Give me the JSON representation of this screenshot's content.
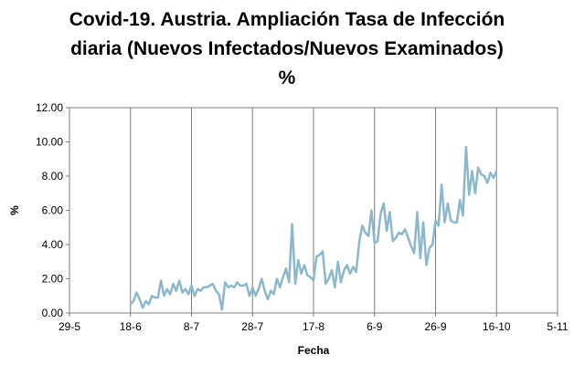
{
  "chart_data": {
    "type": "line",
    "title_lines": [
      "Covid-19. Austria. Ampliación Tasa de Infección",
      "diaria (Nuevos Infectados/Nuevos Examinados)",
      "%"
    ],
    "xlabel": "Fecha",
    "ylabel": "%",
    "x_tick_labels": [
      "29-5",
      "18-6",
      "8-7",
      "28-7",
      "17-8",
      "6-9",
      "26-9",
      "16-10",
      "5-11"
    ],
    "y_tick_labels": [
      "0.00",
      "2.00",
      "4.00",
      "6.00",
      "8.00",
      "10.00",
      "12.00"
    ],
    "ylim": [
      0,
      12
    ],
    "x_range_days": [
      0,
      160
    ],
    "grid": "vertical",
    "legend": "none",
    "line_color": "#8db8cc",
    "series": [
      {
        "x": [
          20,
          21,
          22,
          23,
          24,
          25,
          26,
          27,
          28,
          29,
          30,
          31,
          32,
          33,
          34,
          35,
          36,
          37,
          38,
          39,
          40,
          41,
          42,
          43,
          44,
          45,
          46,
          47,
          48,
          49,
          50,
          51,
          52,
          53,
          54,
          55,
          56,
          57,
          58,
          59,
          60,
          61,
          62,
          63,
          64,
          65,
          66,
          67,
          68,
          69,
          70,
          71,
          72,
          73,
          74,
          75,
          76,
          77,
          78,
          79,
          80,
          81,
          82,
          83,
          84,
          85,
          86,
          87,
          88,
          89,
          90,
          91,
          92,
          93,
          94,
          95,
          96,
          97,
          98,
          99,
          100,
          101,
          102,
          103,
          104,
          105,
          106,
          107,
          108,
          109,
          110,
          111,
          112,
          113,
          114,
          115,
          116,
          117,
          118,
          119,
          120,
          121,
          122,
          123,
          124,
          125,
          126,
          127,
          128,
          129,
          130,
          131,
          132,
          133,
          134,
          135,
          136,
          137,
          138,
          139,
          140
        ],
        "values": [
          0.5,
          0.7,
          1.2,
          0.8,
          0.3,
          0.7,
          0.5,
          1.0,
          0.9,
          0.9,
          1.9,
          1.0,
          1.4,
          1.1,
          1.7,
          1.3,
          1.9,
          1.2,
          1.4,
          1.1,
          1.6,
          1.0,
          1.4,
          1.3,
          1.5,
          1.5,
          1.6,
          1.7,
          1.3,
          1.1,
          0.2,
          1.8,
          1.5,
          1.6,
          1.5,
          1.8,
          1.6,
          1.6,
          1.7,
          1.0,
          1.5,
          1.0,
          1.4,
          2.0,
          1.3,
          0.8,
          1.3,
          1.1,
          2.0,
          1.5,
          2.1,
          2.6,
          1.8,
          5.2,
          1.7,
          3.1,
          2.3,
          2.8,
          2.2,
          2.1,
          1.9,
          3.3,
          3.4,
          3.6,
          1.7,
          2.0,
          2.5,
          1.5,
          3.0,
          1.8,
          2.5,
          2.8,
          2.3,
          2.7,
          2.4,
          4.2,
          5.1,
          4.7,
          4.5,
          6.0,
          4.1,
          4.2,
          5.8,
          6.4,
          4.8,
          5.9,
          4.2,
          4.4,
          4.7,
          4.6,
          4.9,
          4.4,
          3.9,
          3.5,
          5.9,
          3.2,
          5.3,
          2.8,
          3.8,
          4.0,
          5.4,
          5.1,
          7.5,
          5.3,
          6.4,
          5.4,
          5.3,
          5.3,
          6.6,
          5.7,
          9.7,
          6.9,
          8.3,
          7.0,
          8.5,
          8.1,
          8.0,
          7.6,
          8.2,
          7.9,
          8.3
        ]
      }
    ]
  }
}
